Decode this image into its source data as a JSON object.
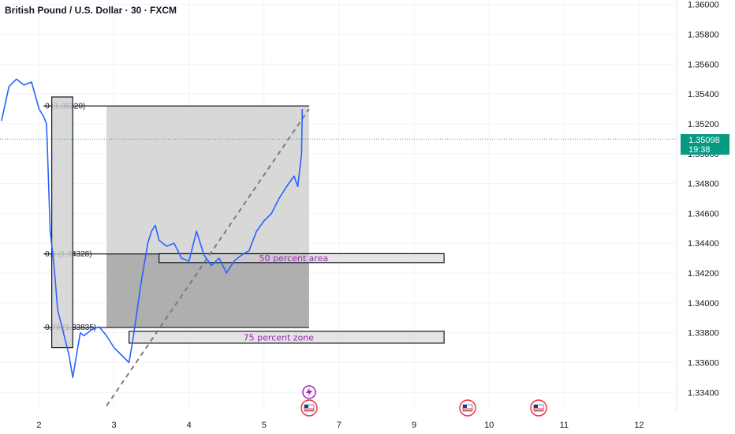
{
  "title": "British Pound / U.S. Dollar · 30 · FXCM",
  "current_price": {
    "value": "1.35098",
    "countdown": "19:38"
  },
  "colors": {
    "candle": "#2962ff",
    "pos_line": "#26a69a",
    "badge": "#089981",
    "purple": "#9c27b0",
    "box_light": "#d1d1d1",
    "box_dark": "#a6a6a6"
  },
  "icons": [
    "lightning-event-icon",
    "us-flag-icon",
    "us-flag-icon",
    "us-flag-icon"
  ],
  "chart_data": {
    "type": "line",
    "title": "British Pound / U.S. Dollar · 30 · FXCM",
    "x_ticks": [
      "2",
      "3",
      "4",
      "5",
      "7",
      "9",
      "10",
      "11",
      "12"
    ],
    "x_tick_values": [
      2,
      3,
      4,
      5,
      6,
      7,
      8,
      9,
      10
    ],
    "y_ticks": [
      "1.33400",
      "1.33600",
      "1.33800",
      "1.34000",
      "1.34200",
      "1.34400",
      "1.34600",
      "1.34800",
      "1.35000",
      "1.35200",
      "1.35400",
      "1.35600",
      "1.35800",
      "1.36000"
    ],
    "ylim": [
      1.3328,
      1.3603
    ],
    "xlim": [
      1.48,
      10.5
    ],
    "series": [
      {
        "x": [
          1.5,
          1.6,
          1.7,
          1.8,
          1.9,
          2.0,
          2.06,
          2.1,
          2.15,
          2.2,
          2.25,
          2.3,
          2.35,
          2.4,
          2.45,
          2.5,
          2.55,
          2.6,
          2.7,
          2.8,
          2.9,
          3.0,
          3.1,
          3.2,
          3.25,
          3.3,
          3.35,
          3.4,
          3.45,
          3.5,
          3.55,
          3.6,
          3.65,
          3.7,
          3.8,
          3.9,
          4.0,
          4.1,
          4.2,
          4.3,
          4.4,
          4.5,
          4.6,
          4.7,
          4.8,
          4.9,
          5.0,
          5.1,
          5.2,
          5.3,
          5.4,
          5.45,
          5.5,
          5.51
        ],
        "y": [
          1.3522,
          1.3545,
          1.355,
          1.3546,
          1.3548,
          1.353,
          1.3525,
          1.352,
          1.3448,
          1.3425,
          1.3395,
          1.3385,
          1.3375,
          1.3365,
          1.335,
          1.3365,
          1.338,
          1.3378,
          1.3382,
          1.3384,
          1.3378,
          1.337,
          1.3365,
          1.336,
          1.3375,
          1.3392,
          1.341,
          1.3425,
          1.344,
          1.3448,
          1.3452,
          1.3442,
          1.344,
          1.3438,
          1.344,
          1.343,
          1.3428,
          1.3448,
          1.3432,
          1.3425,
          1.343,
          1.342,
          1.3428,
          1.3432,
          1.3435,
          1.3448,
          1.3455,
          1.346,
          1.347,
          1.3478,
          1.3485,
          1.3478,
          1.35,
          1.353
        ]
      }
    ],
    "fib_levels": [
      {
        "ratio": "0",
        "price": 1.3532,
        "label": "0 (1.35320)"
      },
      {
        "ratio": "0.5",
        "price": 1.34328,
        "label": "0.5 (1.34328)"
      },
      {
        "ratio": "0.75",
        "price": 1.33835,
        "label": "0.75 (1.33835)"
      }
    ],
    "fib_x": [
      2.9,
      5.6
    ],
    "zones": [
      {
        "label": "50  percent area",
        "x": [
          3.6,
          7.4
        ],
        "y": [
          1.3427,
          1.3433
        ]
      },
      {
        "label": "75 percent zone",
        "x": [
          3.2,
          7.4
        ],
        "y": [
          1.3373,
          1.3381
        ]
      }
    ],
    "marker_box": {
      "x": [
        2.17,
        2.45
      ],
      "y": [
        1.337,
        1.3538
      ]
    },
    "trend_line": {
      "x": [
        2.9,
        5.6
      ],
      "y": [
        1.3331,
        1.353
      ]
    },
    "current_price_line": 1.35098,
    "grid": true
  }
}
